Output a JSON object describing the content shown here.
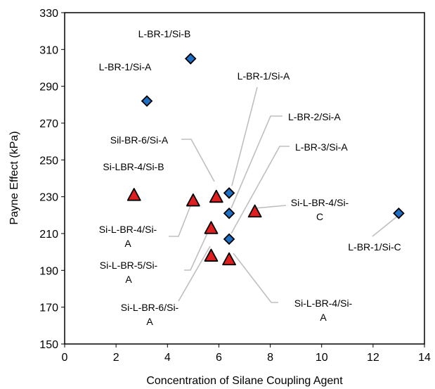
{
  "chart_data": {
    "type": "scatter",
    "xlabel": "Concentration of Silane Coupling Agent",
    "ylabel": "Payne Effect (kPa)",
    "xlim": [
      0,
      14
    ],
    "ylim": [
      150,
      330
    ],
    "xticks": [
      0,
      2,
      4,
      6,
      8,
      10,
      12,
      14
    ],
    "yticks": [
      150,
      170,
      190,
      210,
      230,
      250,
      270,
      290,
      310,
      330
    ],
    "grid": false,
    "legend": "none",
    "series": [
      {
        "marker": "diamond",
        "color": "#1f6fc4",
        "points": [
          {
            "x": 4.9,
            "y": 305
          },
          {
            "x": 3.2,
            "y": 282
          },
          {
            "x": 6.4,
            "y": 232
          },
          {
            "x": 6.4,
            "y": 221
          },
          {
            "x": 6.4,
            "y": 207
          },
          {
            "x": 13.0,
            "y": 221
          }
        ]
      },
      {
        "marker": "triangle",
        "color": "#e02020",
        "points": [
          {
            "x": 2.7,
            "y": 231
          },
          {
            "x": 5.0,
            "y": 228
          },
          {
            "x": 5.9,
            "y": 230
          },
          {
            "x": 5.7,
            "y": 213
          },
          {
            "x": 5.7,
            "y": 198
          },
          {
            "x": 6.4,
            "y": 196
          },
          {
            "x": 7.4,
            "y": 222
          }
        ]
      }
    ],
    "annotations": [
      {
        "lines": [
          "L-BR-1/Si-B"
        ]
      },
      {
        "lines": [
          "L-BR-1/Si-A"
        ]
      },
      {
        "lines": [
          "L-BR-1/Si-A"
        ]
      },
      {
        "lines": [
          "L-BR-2/Si-A"
        ]
      },
      {
        "lines": [
          "L-BR-3/Si-A"
        ]
      },
      {
        "lines": [
          "Sil-BR-6/Si-A"
        ]
      },
      {
        "lines": [
          "Si-LBR-4/Si-B"
        ]
      },
      {
        "lines": [
          "Si-L-BR-4/Si-",
          "C"
        ]
      },
      {
        "lines": [
          "L-BR-1/Si-C"
        ]
      },
      {
        "lines": [
          "Si-L-BR-4/Si-",
          "A"
        ]
      },
      {
        "lines": [
          "Si-L-BR-5/Si-",
          "A"
        ]
      },
      {
        "lines": [
          "Si-L-BR-6/Si-",
          "A"
        ]
      },
      {
        "lines": [
          "Si-L-BR-4/Si-",
          "A"
        ]
      }
    ]
  }
}
